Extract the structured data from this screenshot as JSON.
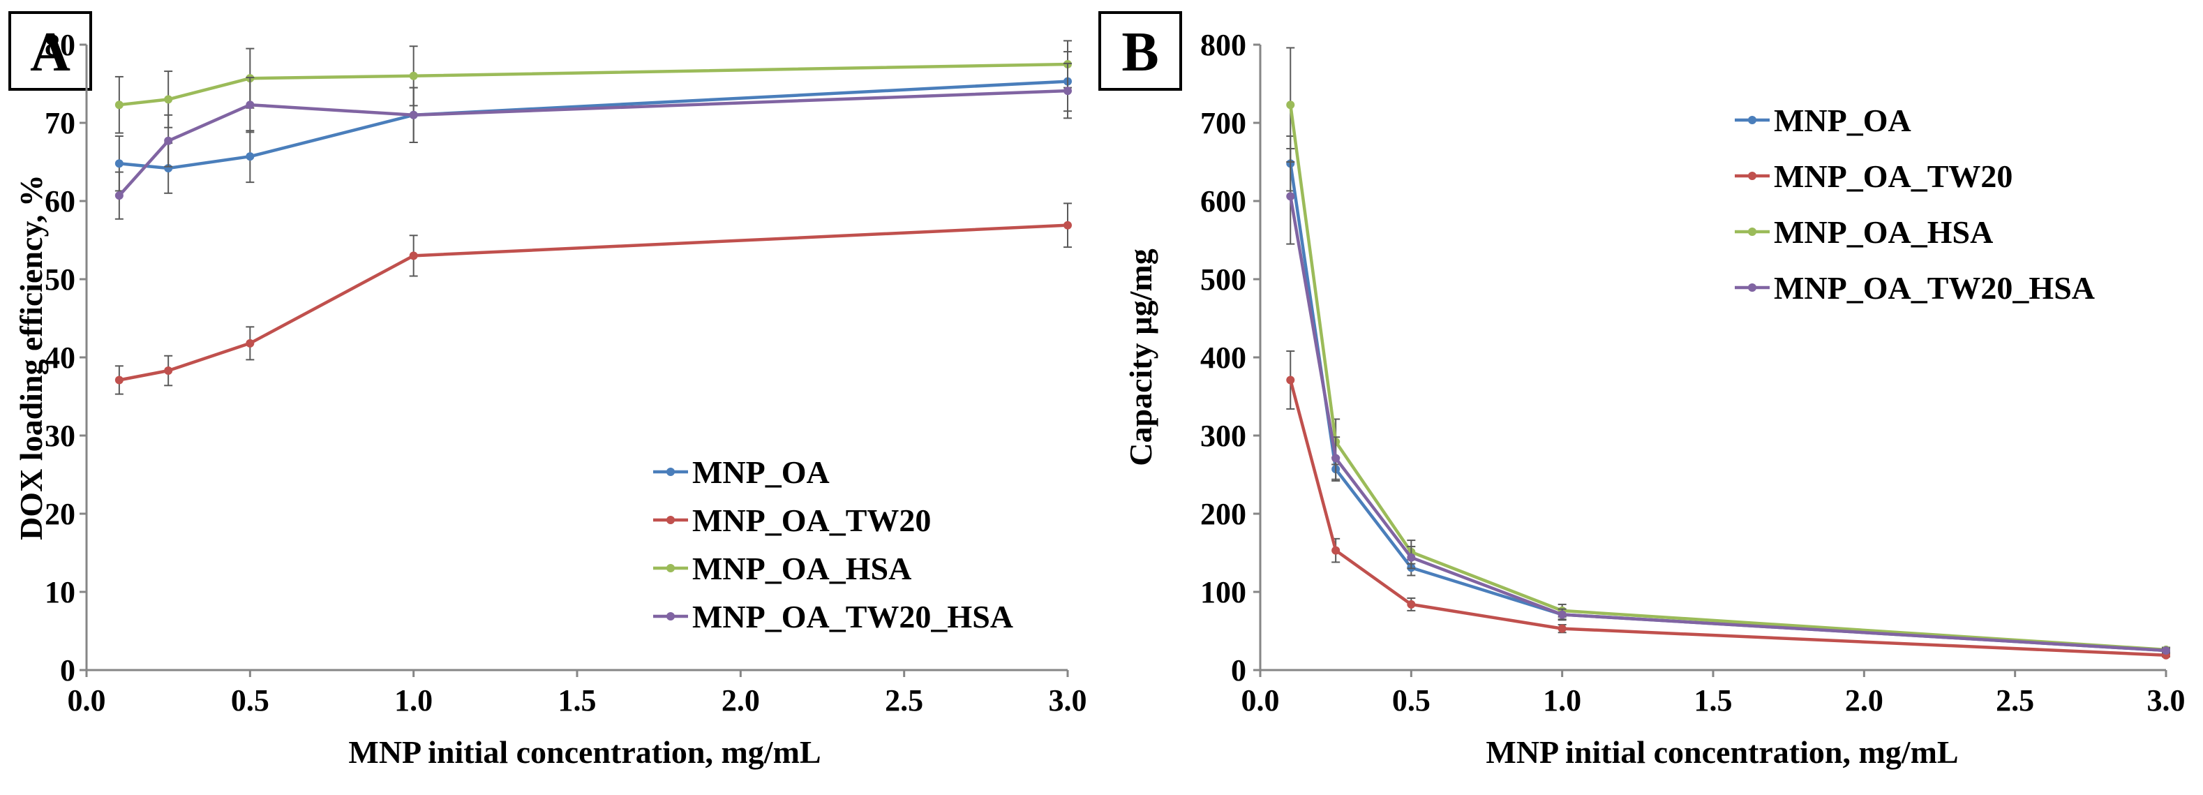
{
  "colors": {
    "MNP_OA": "#4a7ebb",
    "MNP_OA_TW20": "#c0504d",
    "MNP_OA_HSA": "#9bbb59",
    "MNP_OA_TW20_HSA": "#8064a2",
    "axis": "#868686",
    "errorbar": "#595959"
  },
  "chart_data": [
    {
      "panel": "A",
      "type": "line",
      "title": "",
      "xlabel": "MNP initial concentration, mg/mL",
      "ylabel": "DOX loading efficiency, %",
      "xlim": [
        0,
        3
      ],
      "ylim": [
        0,
        80
      ],
      "xticks": [
        0,
        0.5,
        1,
        1.5,
        2,
        2.5,
        3
      ],
      "xtick_labels": [
        "0.0",
        "0.5",
        "1.0",
        "1.5",
        "2.0",
        "2.5",
        "3.0"
      ],
      "yticks": [
        0,
        10,
        20,
        30,
        40,
        50,
        60,
        70,
        80
      ],
      "ytick_labels": [
        "0",
        "10",
        "20",
        "30",
        "40",
        "50",
        "60",
        "70",
        "80"
      ],
      "legend_position": "bottom-right",
      "grid": false,
      "x": [
        0.1,
        0.25,
        0.5,
        1.0,
        3.0
      ],
      "series": [
        {
          "name": "MNP_OA",
          "color_key": "MNP_OA",
          "values": [
            64.8,
            64.2,
            65.7,
            71.0,
            75.3
          ],
          "errors": [
            3.5,
            3.2,
            3.3,
            3.5,
            3.8
          ]
        },
        {
          "name": "MNP_OA_TW20",
          "color_key": "MNP_OA_TW20",
          "values": [
            37.1,
            38.3,
            41.8,
            53.0,
            56.9
          ],
          "errors": [
            1.8,
            1.9,
            2.1,
            2.6,
            2.8
          ]
        },
        {
          "name": "MNP_OA_HSA",
          "color_key": "MNP_OA_HSA",
          "values": [
            72.3,
            73.0,
            75.7,
            76.0,
            77.5
          ],
          "errors": [
            3.6,
            3.6,
            3.8,
            3.8,
            3.0
          ]
        },
        {
          "name": "MNP_OA_TW20_HSA",
          "color_key": "MNP_OA_TW20_HSA",
          "values": [
            60.7,
            67.7,
            72.3,
            71.0,
            74.1
          ],
          "errors": [
            3.0,
            3.3,
            3.5,
            3.5,
            3.5
          ]
        }
      ]
    },
    {
      "panel": "B",
      "type": "line",
      "title": "",
      "xlabel": "MNP initial concentration, mg/mL",
      "ylabel": "Capacity µg/mg",
      "xlim": [
        0,
        3
      ],
      "ylim": [
        0,
        800
      ],
      "xticks": [
        0,
        0.5,
        1,
        1.5,
        2,
        2.5,
        3
      ],
      "xtick_labels": [
        "0.0",
        "0.5",
        "1.0",
        "1.5",
        "2.0",
        "2.5",
        "3.0"
      ],
      "yticks": [
        0,
        100,
        200,
        300,
        400,
        500,
        600,
        700,
        800
      ],
      "ytick_labels": [
        "0",
        "100",
        "200",
        "300",
        "400",
        "500",
        "600",
        "700",
        "800"
      ],
      "legend_position": "top-right",
      "grid": false,
      "x": [
        0.1,
        0.25,
        0.5,
        1.0,
        3.0
      ],
      "series": [
        {
          "name": "MNP_OA",
          "color_key": "MNP_OA",
          "values": [
            648,
            257,
            131,
            71,
            25
          ],
          "errors": [
            35,
            15,
            10,
            6,
            2
          ]
        },
        {
          "name": "MNP_OA_TW20",
          "color_key": "MNP_OA_TW20",
          "values": [
            371,
            153,
            84,
            53,
            19
          ],
          "errors": [
            37,
            15,
            8,
            5,
            2
          ]
        },
        {
          "name": "MNP_OA_HSA",
          "color_key": "MNP_OA_HSA",
          "values": [
            723,
            292,
            151,
            76,
            26
          ],
          "errors": [
            73,
            29,
            15,
            8,
            3
          ]
        },
        {
          "name": "MNP_OA_TW20_HSA",
          "color_key": "MNP_OA_TW20_HSA",
          "values": [
            606,
            271,
            144,
            71,
            25
          ],
          "errors": [
            61,
            27,
            14,
            7,
            3
          ]
        }
      ]
    }
  ]
}
